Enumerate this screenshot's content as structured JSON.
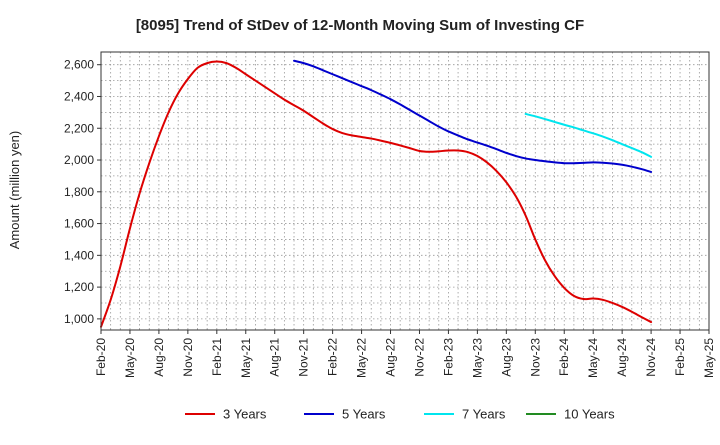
{
  "chart_data": {
    "type": "line",
    "title": "[8095]  Trend of StDev of 12-Month Moving Sum of Investing CF",
    "xlabel": "",
    "ylabel": "Amount (million yen)",
    "ylim": [
      930,
      2680
    ],
    "yticks": [
      1000,
      1200,
      1400,
      1600,
      1800,
      2000,
      2200,
      2400,
      2600
    ],
    "ytick_labels": [
      "1,000",
      "1,200",
      "1,400",
      "1,600",
      "1,800",
      "2,000",
      "2,200",
      "2,400",
      "2,600"
    ],
    "x_start": "Feb-20",
    "xlim_months": [
      0,
      63
    ],
    "xtick_labels": [
      "Feb-20",
      "May-20",
      "Aug-20",
      "Nov-20",
      "Feb-21",
      "May-21",
      "Aug-21",
      "Nov-21",
      "Feb-22",
      "May-22",
      "Aug-22",
      "Nov-22",
      "Feb-23",
      "May-23",
      "Aug-23",
      "Nov-23",
      "Feb-24",
      "May-24",
      "Aug-24",
      "Nov-24",
      "Feb-25",
      "May-25"
    ],
    "grid": true,
    "legend_position": "bottom",
    "series": [
      {
        "name": "3 Years",
        "color": "#dd0000",
        "points": [
          [
            "Feb-20",
            950
          ],
          [
            "Mar-20",
            1120
          ],
          [
            "Apr-20",
            1330
          ],
          [
            "May-20",
            1570
          ],
          [
            "Jun-20",
            1790
          ],
          [
            "Jul-20",
            1980
          ],
          [
            "Aug-20",
            2150
          ],
          [
            "Sep-20",
            2300
          ],
          [
            "Oct-20",
            2420
          ],
          [
            "Nov-20",
            2510
          ],
          [
            "Dec-20",
            2580
          ],
          [
            "Jan-21",
            2610
          ],
          [
            "Feb-21",
            2620
          ],
          [
            "Mar-21",
            2610
          ],
          [
            "Apr-21",
            2580
          ],
          [
            "May-21",
            2540
          ],
          [
            "Jun-21",
            2500
          ],
          [
            "Jul-21",
            2460
          ],
          [
            "Aug-21",
            2420
          ],
          [
            "Sep-21",
            2380
          ],
          [
            "Oct-21",
            2345
          ],
          [
            "Nov-21",
            2310
          ],
          [
            "Dec-21",
            2270
          ],
          [
            "Jan-22",
            2230
          ],
          [
            "Feb-22",
            2195
          ],
          [
            "Mar-22",
            2170
          ],
          [
            "Apr-22",
            2155
          ],
          [
            "May-22",
            2145
          ],
          [
            "Jun-22",
            2135
          ],
          [
            "Jul-22",
            2122
          ],
          [
            "Aug-22",
            2108
          ],
          [
            "Sep-22",
            2092
          ],
          [
            "Oct-22",
            2075
          ],
          [
            "Nov-22",
            2057
          ],
          [
            "Dec-22",
            2052
          ],
          [
            "Jan-23",
            2055
          ],
          [
            "Feb-23",
            2060
          ],
          [
            "Mar-23",
            2060
          ],
          [
            "Apr-23",
            2050
          ],
          [
            "May-23",
            2025
          ],
          [
            "Jun-23",
            1985
          ],
          [
            "Jul-23",
            1930
          ],
          [
            "Aug-23",
            1860
          ],
          [
            "Sep-23",
            1770
          ],
          [
            "Oct-23",
            1650
          ],
          [
            "Nov-23",
            1500
          ],
          [
            "Dec-23",
            1370
          ],
          [
            "Jan-24",
            1270
          ],
          [
            "Feb-24",
            1195
          ],
          [
            "Mar-24",
            1145
          ],
          [
            "Apr-24",
            1125
          ],
          [
            "May-24",
            1128
          ],
          [
            "Jun-24",
            1120
          ],
          [
            "Jul-24",
            1100
          ],
          [
            "Aug-24",
            1075
          ],
          [
            "Sep-24",
            1045
          ],
          [
            "Oct-24",
            1012
          ],
          [
            "Nov-24",
            980
          ]
        ]
      },
      {
        "name": "5 Years",
        "color": "#0000cc",
        "points": [
          [
            "Feb-20",
            null
          ],
          [
            "Mar-20",
            null
          ],
          [
            "Apr-20",
            null
          ],
          [
            "May-20",
            null
          ],
          [
            "Jun-20",
            null
          ],
          [
            "Jul-20",
            null
          ],
          [
            "Aug-20",
            null
          ],
          [
            "Sep-20",
            null
          ],
          [
            "Oct-20",
            null
          ],
          [
            "Nov-20",
            null
          ],
          [
            "Dec-20",
            null
          ],
          [
            "Jan-21",
            null
          ],
          [
            "Feb-21",
            null
          ],
          [
            "Mar-21",
            null
          ],
          [
            "Apr-21",
            null
          ],
          [
            "May-21",
            null
          ],
          [
            "Jun-21",
            null
          ],
          [
            "Jul-21",
            null
          ],
          [
            "Aug-21",
            null
          ],
          [
            "Sep-21",
            null
          ],
          [
            "Oct-21",
            2625
          ],
          [
            "Nov-21",
            2610
          ],
          [
            "Dec-21",
            2590
          ],
          [
            "Jan-22",
            2565
          ],
          [
            "Feb-22",
            2540
          ],
          [
            "Mar-22",
            2515
          ],
          [
            "Apr-22",
            2490
          ],
          [
            "May-22",
            2465
          ],
          [
            "Jun-22",
            2440
          ],
          [
            "Jul-22",
            2412
          ],
          [
            "Aug-22",
            2383
          ],
          [
            "Sep-22",
            2350
          ],
          [
            "Oct-22",
            2315
          ],
          [
            "Nov-22",
            2280
          ],
          [
            "Dec-22",
            2245
          ],
          [
            "Jan-23",
            2210
          ],
          [
            "Feb-23",
            2180
          ],
          [
            "Mar-23",
            2155
          ],
          [
            "Apr-23",
            2130
          ],
          [
            "May-23",
            2110
          ],
          [
            "Jun-23",
            2090
          ],
          [
            "Jul-23",
            2068
          ],
          [
            "Aug-23",
            2045
          ],
          [
            "Sep-23",
            2025
          ],
          [
            "Oct-23",
            2010
          ],
          [
            "Nov-23",
            2000
          ],
          [
            "Dec-23",
            1992
          ],
          [
            "Jan-24",
            1985
          ],
          [
            "Feb-24",
            1980
          ],
          [
            "Mar-24",
            1980
          ],
          [
            "Apr-24",
            1982
          ],
          [
            "May-24",
            1985
          ],
          [
            "Jun-24",
            1983
          ],
          [
            "Jul-24",
            1978
          ],
          [
            "Aug-24",
            1970
          ],
          [
            "Sep-24",
            1958
          ],
          [
            "Oct-24",
            1943
          ],
          [
            "Nov-24",
            1925
          ]
        ]
      },
      {
        "name": "7 Years",
        "color": "#00e5ee",
        "points": [
          [
            "Oct-23",
            2290
          ],
          [
            "Nov-23",
            2275
          ],
          [
            "Dec-23",
            2258
          ],
          [
            "Jan-24",
            2240
          ],
          [
            "Feb-24",
            2222
          ],
          [
            "Mar-24",
            2205
          ],
          [
            "Apr-24",
            2186
          ],
          [
            "May-24",
            2168
          ],
          [
            "Jun-24",
            2148
          ],
          [
            "Jul-24",
            2125
          ],
          [
            "Aug-24",
            2100
          ],
          [
            "Sep-24",
            2075
          ],
          [
            "Oct-24",
            2050
          ],
          [
            "Nov-24",
            2020
          ]
        ]
      },
      {
        "name": "10 Years",
        "color": "#228b22",
        "points": []
      }
    ]
  }
}
